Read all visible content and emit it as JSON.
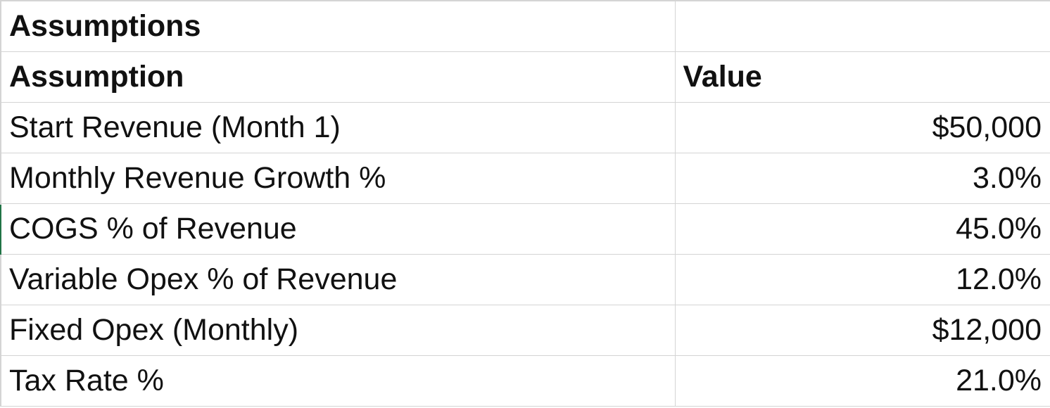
{
  "sheet": {
    "title": "Assumptions",
    "headers": {
      "assumption": "Assumption",
      "value": "Value"
    },
    "rows": [
      {
        "assumption": "Start Revenue (Month 1)",
        "value": "$50,000"
      },
      {
        "assumption": "Monthly Revenue Growth %",
        "value": "3.0%"
      },
      {
        "assumption": "COGS % of Revenue",
        "value": "45.0%"
      },
      {
        "assumption": "Variable Opex % of Revenue",
        "value": "12.0%"
      },
      {
        "assumption": "Fixed Opex (Monthly)",
        "value": "$12,000"
      },
      {
        "assumption": "Tax Rate %",
        "value": "21.0%"
      }
    ]
  }
}
